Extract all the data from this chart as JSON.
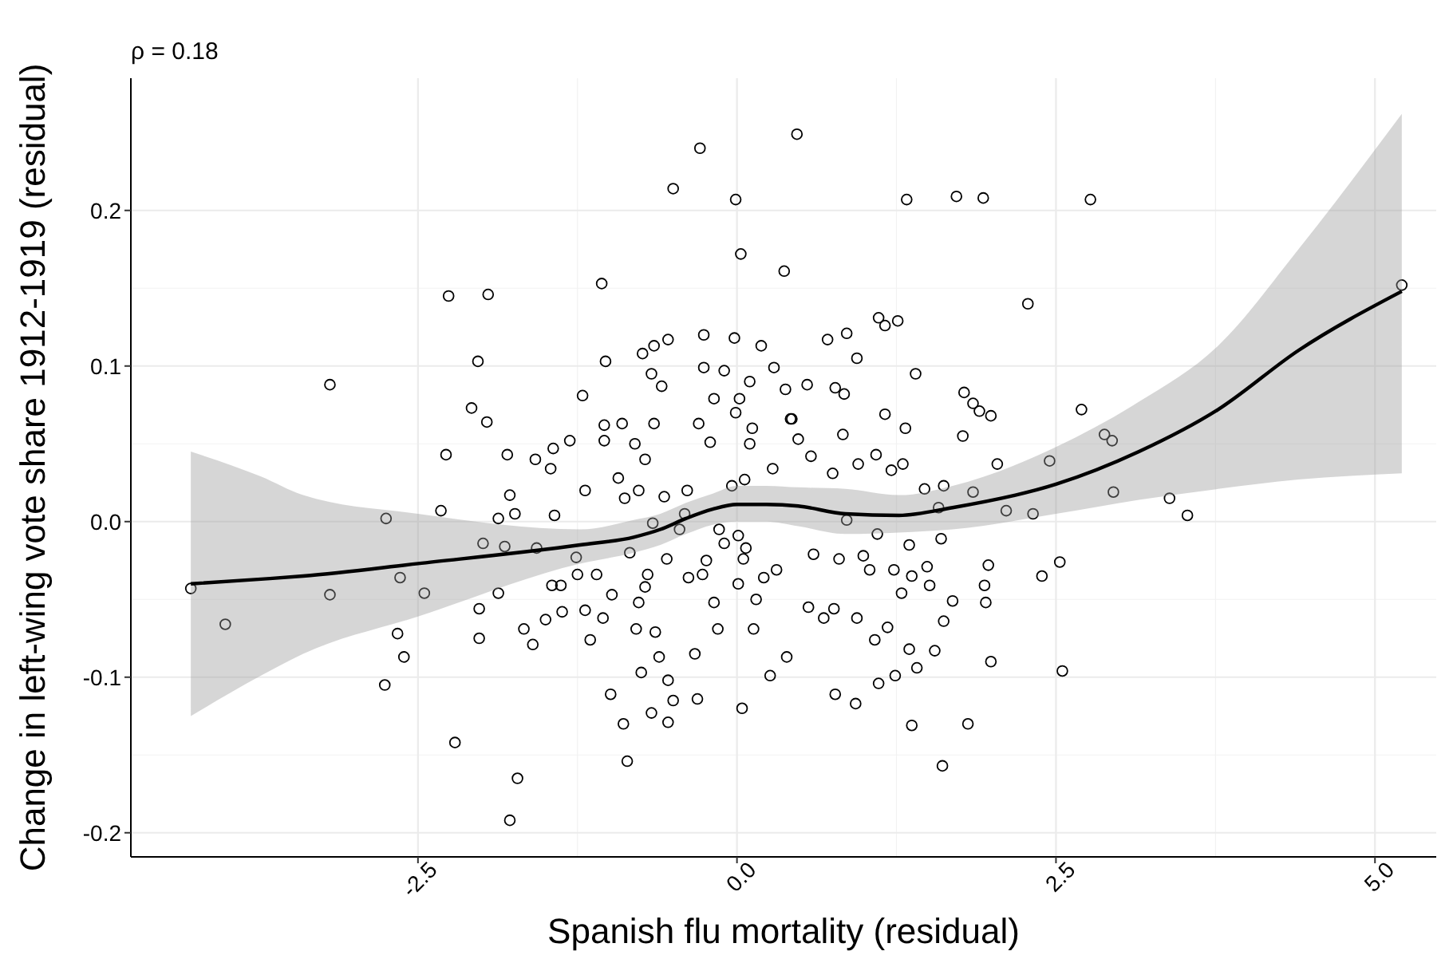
{
  "chart_data": {
    "type": "scatter",
    "title": "ρ = 0.18",
    "xlabel": "Spanish flu mortality (residual)",
    "ylabel": "Change in left-wing vote share 1912-1919 (residual)",
    "xlim": [
      -4.75,
      5.48
    ],
    "xticks": [
      {
        "value": -2.5,
        "label": "-2.5"
      },
      {
        "value": 0,
        "label": "0.0"
      },
      {
        "value": 2.5,
        "label": "2.5"
      },
      {
        "value": 5,
        "label": "5.0"
      }
    ],
    "ylim": [
      -0.2155,
      0.285
    ],
    "yticks": [
      -0.2,
      -0.1,
      {
        "value": 0,
        "label": "0.0"
      },
      0.1,
      0.2
    ],
    "grid": true,
    "series": [
      {
        "color": "#000000",
        "marker": "circle",
        "x": [
          -4.28,
          -4.01,
          -3.19,
          -3.19,
          -2.75,
          -2.76,
          -2.66,
          -2.64,
          -2.61,
          -2.45,
          -2.32,
          -2.28,
          -2.26,
          -2.21,
          -2.08,
          -2.03,
          -1.99,
          -1.96,
          -1.95,
          -2.02,
          -2.02,
          -1.87,
          -1.87,
          -1.82,
          -1.8,
          -1.78,
          -1.74,
          -1.72,
          -1.78,
          -1.67,
          -1.6,
          -1.58,
          -1.57,
          -1.5,
          -1.46,
          -1.44,
          -1.45,
          -1.43,
          -1.38,
          -1.37,
          -1.31,
          -1.26,
          -1.25,
          -1.21,
          -1.19,
          -1.19,
          -1.15,
          -1.1,
          -1.06,
          -1.05,
          -1.04,
          -1.03,
          -0.99,
          -1.04,
          -0.98,
          -0.93,
          -0.9,
          -0.89,
          -0.88,
          -0.86,
          -0.84,
          -0.8,
          -0.79,
          -0.77,
          -0.77,
          -0.75,
          -0.74,
          -0.72,
          -0.72,
          -0.7,
          -0.67,
          -0.67,
          -0.66,
          -0.65,
          -0.65,
          -0.64,
          -0.61,
          -0.59,
          -0.57,
          -0.55,
          -0.54,
          -0.54,
          -0.54,
          -0.5,
          -0.5,
          -0.45,
          -0.41,
          -0.39,
          -0.38,
          -0.33,
          -0.31,
          -0.3,
          -0.29,
          -0.27,
          -0.26,
          -0.26,
          -0.24,
          -0.21,
          -0.18,
          -0.18,
          -0.15,
          -0.14,
          -0.1,
          -0.1,
          -0.04,
          -0.02,
          -0.01,
          -0.01,
          0.01,
          0.01,
          0.02,
          0.03,
          0.04,
          0.05,
          0.06,
          0.07,
          0.1,
          0.1,
          0.12,
          0.13,
          0.15,
          0.19,
          0.21,
          0.26,
          0.28,
          0.29,
          0.31,
          0.37,
          0.39,
          0.42,
          0.47,
          0.38,
          0.43,
          0.48,
          0.55,
          0.58,
          0.56,
          0.6,
          0.68,
          0.71,
          0.75,
          0.76,
          0.77,
          0.77,
          0.8,
          0.83,
          0.84,
          0.86,
          0.86,
          0.93,
          0.94,
          0.94,
          0.95,
          0.99,
          1.04,
          1.08,
          1.09,
          1.1,
          1.11,
          1.11,
          1.16,
          1.16,
          1.18,
          1.21,
          1.23,
          1.24,
          1.26,
          1.29,
          1.3,
          1.32,
          1.33,
          1.35,
          1.35,
          1.37,
          1.37,
          1.4,
          1.41,
          1.47,
          1.49,
          1.51,
          1.55,
          1.58,
          1.6,
          1.61,
          1.62,
          1.62,
          1.69,
          1.72,
          1.77,
          1.78,
          1.81,
          1.85,
          1.85,
          1.9,
          1.93,
          1.94,
          1.95,
          1.97,
          1.99,
          1.99,
          2.04,
          2.11,
          2.28,
          2.32,
          2.39,
          2.45,
          2.53,
          2.55,
          2.7,
          2.77,
          2.88,
          2.94,
          2.95,
          3.39,
          3.53,
          5.21
        ],
        "values": [
          -0.043,
          -0.066,
          0.088,
          -0.047,
          0.002,
          -0.105,
          -0.072,
          -0.036,
          -0.087,
          -0.046,
          0.007,
          0.043,
          0.145,
          -0.142,
          0.073,
          0.103,
          -0.014,
          0.064,
          0.146,
          -0.056,
          -0.075,
          -0.046,
          0.002,
          -0.016,
          0.043,
          0.017,
          0.005,
          -0.165,
          -0.192,
          -0.069,
          -0.079,
          0.04,
          -0.017,
          -0.063,
          0.034,
          0.047,
          -0.041,
          0.004,
          -0.041,
          -0.058,
          0.052,
          -0.023,
          -0.034,
          0.081,
          0.02,
          -0.057,
          -0.076,
          -0.034,
          0.153,
          -0.062,
          0.062,
          0.103,
          -0.111,
          0.052,
          -0.047,
          0.028,
          0.063,
          -0.13,
          0.015,
          -0.154,
          -0.02,
          0.05,
          -0.069,
          0.02,
          -0.052,
          -0.097,
          0.108,
          -0.042,
          0.04,
          -0.034,
          -0.123,
          0.095,
          -0.001,
          0.063,
          0.113,
          -0.071,
          -0.087,
          0.087,
          0.016,
          -0.024,
          0.117,
          -0.102,
          -0.129,
          0.214,
          -0.115,
          -0.005,
          0.005,
          0.02,
          -0.036,
          -0.085,
          -0.114,
          0.063,
          0.24,
          -0.034,
          0.12,
          0.099,
          -0.025,
          0.051,
          0.079,
          -0.052,
          -0.069,
          -0.005,
          0.097,
          -0.014,
          0.023,
          0.118,
          0.07,
          0.207,
          -0.04,
          -0.009,
          0.079,
          0.172,
          -0.12,
          -0.024,
          0.027,
          -0.017,
          0.09,
          0.05,
          0.06,
          -0.069,
          -0.05,
          0.113,
          -0.036,
          -0.099,
          0.034,
          0.099,
          -0.031,
          0.161,
          -0.087,
          0.066,
          0.249,
          0.085,
          0.066,
          0.053,
          0.088,
          0.042,
          -0.055,
          -0.021,
          -0.062,
          0.117,
          0.031,
          -0.056,
          -0.111,
          0.086,
          -0.024,
          0.056,
          0.082,
          0.121,
          0.001,
          -0.117,
          -0.062,
          0.105,
          0.037,
          -0.022,
          -0.031,
          -0.076,
          0.043,
          -0.008,
          0.131,
          -0.104,
          0.126,
          0.069,
          -0.068,
          0.033,
          -0.031,
          -0.099,
          0.129,
          -0.046,
          0.037,
          0.06,
          0.207,
          -0.015,
          -0.082,
          -0.131,
          -0.035,
          0.095,
          -0.094,
          0.021,
          -0.029,
          -0.041,
          -0.083,
          0.009,
          -0.011,
          -0.157,
          0.023,
          -0.064,
          -0.051,
          0.209,
          0.055,
          0.083,
          -0.13,
          0.019,
          0.076,
          0.071,
          0.208,
          -0.041,
          -0.052,
          -0.028,
          -0.09,
          0.068,
          0.037,
          0.007,
          0.14,
          0.005,
          -0.035,
          0.039,
          -0.026,
          -0.096,
          0.072,
          0.207,
          0.056,
          0.052,
          0.019,
          0.015,
          0.004,
          0.152
        ]
      },
      {
        "type": "line",
        "color": "#000000",
        "line_style": "solid",
        "x": [
          -4.28,
          -3.73,
          -3.4,
          -2.5,
          -1.23,
          -0.81,
          -0.6,
          -0.4,
          -0.19,
          0,
          0.23,
          0.48,
          0.85,
          1.27,
          1.69,
          2.5,
          3.15,
          3.77,
          4.4,
          5.21
        ],
        "values": [
          -0.04,
          -0.037,
          -0.035,
          -0.027,
          -0.015,
          -0.01,
          -0.005,
          0.002,
          0.008,
          0.011,
          0.011,
          0.01,
          0.005,
          0.004,
          0.009,
          0.024,
          0.045,
          0.072,
          0.11,
          0.148
        ],
        "lower": [
          -0.125,
          -0.099,
          -0.085,
          -0.061,
          -0.027,
          -0.02,
          -0.015,
          -0.008,
          -0.002,
          0,
          0,
          -0.003,
          -0.008,
          -0.007,
          -0.005,
          0.005,
          0.014,
          0.021,
          0.027,
          0.031
        ],
        "upper": [
          0.045,
          0.029,
          0.017,
          0.005,
          -0.005,
          0.001,
          0.005,
          0.012,
          0.018,
          0.023,
          0.023,
          0.022,
          0.021,
          0.017,
          0.023,
          0.048,
          0.077,
          0.113,
          0.175,
          0.262
        ]
      }
    ]
  }
}
